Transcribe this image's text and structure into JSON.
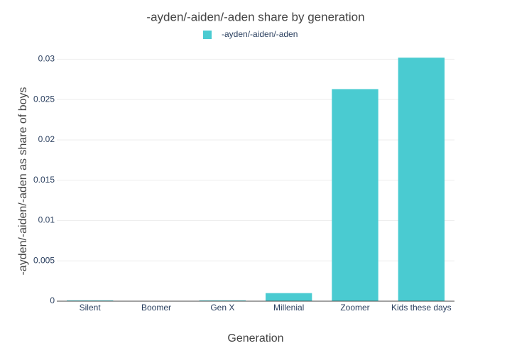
{
  "chart_data": {
    "type": "bar",
    "title": "-ayden/-aiden/-aden share by generation",
    "x_label": "Generation",
    "y_label": "-ayden/-aiden/-aden as share of boys",
    "categories": [
      "Silent",
      "Boomer",
      "Gen X",
      "Millenial",
      "Zoomer",
      "Kids these days"
    ],
    "series": [
      {
        "name": "-ayden/-aiden/-aden",
        "color": "#4acbd1",
        "values": [
          0.0001,
          3e-05,
          0.0001,
          0.001,
          0.0263,
          0.0302
        ]
      }
    ],
    "ylim": [
      0,
      0.0318
    ],
    "yticks": [
      0,
      0.005,
      0.01,
      0.015,
      0.02,
      0.025,
      0.03
    ],
    "grid": true
  }
}
